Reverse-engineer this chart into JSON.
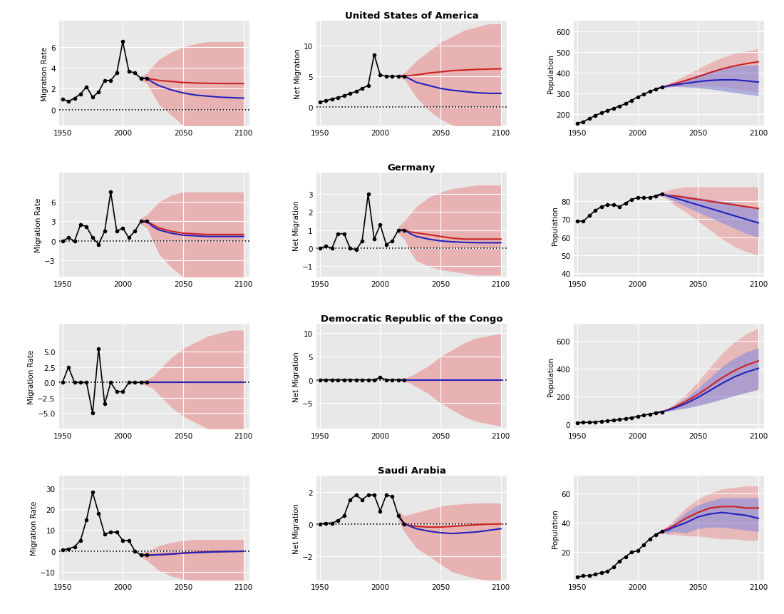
{
  "countries": [
    "United States of America",
    "Germany",
    "Democratic Republic of the Congo",
    "Saudi Arabia"
  ],
  "hist_years": [
    1950,
    1955,
    1960,
    1965,
    1970,
    1975,
    1980,
    1985,
    1990,
    1995,
    2000,
    2005,
    2010,
    2015,
    2020
  ],
  "proj_years": [
    2015,
    2020,
    2025,
    2030,
    2040,
    2050,
    2060,
    2070,
    2080,
    2090,
    2100
  ],
  "background_color": "#e8e8e8",
  "red_color": "#cc2222",
  "blue_color": "#2222bb",
  "red_band_color": "#e8a0a0",
  "blue_band_color": "#9090d8",
  "USA": {
    "mig_rate_hist": [
      1.0,
      0.8,
      1.1,
      1.5,
      2.2,
      1.2,
      1.7,
      2.8,
      2.8,
      3.5,
      6.5,
      3.7,
      3.5,
      3.0,
      3.0
    ],
    "mig_rate_ylim": [
      -1.5,
      8.5
    ],
    "mig_rate_yticks": [
      0,
      2,
      4,
      6
    ],
    "mig_rate_proj_red": [
      3.0,
      3.0,
      2.9,
      2.8,
      2.7,
      2.6,
      2.55,
      2.52,
      2.51,
      2.5,
      2.5
    ],
    "mig_rate_proj_blue": [
      3.0,
      3.0,
      2.6,
      2.3,
      1.9,
      1.6,
      1.4,
      1.3,
      1.2,
      1.15,
      1.1
    ],
    "mig_rate_band_upper": [
      3.2,
      3.5,
      4.2,
      4.8,
      5.5,
      6.0,
      6.3,
      6.5,
      6.5,
      6.5,
      6.5
    ],
    "mig_rate_band_lower": [
      2.8,
      2.5,
      1.5,
      0.5,
      -0.5,
      -1.5,
      -2.2,
      -2.7,
      -3.0,
      -3.0,
      -3.0
    ],
    "net_mig_hist": [
      0.8,
      1.0,
      1.3,
      1.5,
      1.8,
      2.2,
      2.5,
      3.0,
      3.5,
      8.5,
      5.2,
      5.0,
      5.0,
      5.0,
      5.0
    ],
    "net_mig_ylim": [
      -3,
      14
    ],
    "net_mig_yticks": [
      0,
      5,
      10
    ],
    "net_mig_proj_red": [
      5.0,
      5.0,
      5.1,
      5.2,
      5.5,
      5.7,
      5.9,
      6.0,
      6.1,
      6.15,
      6.2
    ],
    "net_mig_proj_blue": [
      5.0,
      5.0,
      4.5,
      4.0,
      3.5,
      3.0,
      2.7,
      2.5,
      2.3,
      2.2,
      2.2
    ],
    "net_mig_band_upper": [
      5.2,
      5.5,
      6.5,
      7.5,
      9.0,
      10.5,
      11.5,
      12.5,
      13.0,
      13.5,
      13.5
    ],
    "net_mig_band_lower": [
      4.8,
      4.5,
      3.0,
      1.5,
      -0.5,
      -2.0,
      -3.0,
      -3.5,
      -4.0,
      -4.0,
      -4.0
    ],
    "pop_hist": [
      155,
      163,
      178,
      193,
      205,
      216,
      228,
      238,
      250,
      266,
      282,
      295,
      309,
      320,
      329
    ],
    "pop_ylim": [
      145,
      650
    ],
    "pop_yticks": [
      200,
      300,
      400,
      500,
      600
    ],
    "pop_proj_red": [
      320,
      329,
      337,
      345,
      362,
      380,
      400,
      418,
      432,
      443,
      452
    ],
    "pop_proj_blue": [
      320,
      329,
      335,
      340,
      348,
      356,
      362,
      365,
      365,
      360,
      354
    ],
    "pop_band_upper": [
      321,
      332,
      345,
      358,
      388,
      418,
      448,
      472,
      492,
      505,
      515
    ],
    "pop_band_lower": [
      319,
      326,
      329,
      332,
      335,
      336,
      335,
      330,
      323,
      315,
      306
    ],
    "pop_blue_band_upper": [
      320,
      330,
      339,
      348,
      368,
      388,
      406,
      420,
      430,
      435,
      438
    ],
    "pop_blue_band_lower": [
      320,
      328,
      331,
      333,
      330,
      326,
      320,
      312,
      303,
      295,
      288
    ]
  },
  "GER": {
    "mig_rate_hist": [
      0.0,
      0.5,
      0.0,
      2.5,
      2.2,
      0.5,
      -0.5,
      1.5,
      7.5,
      1.5,
      2.0,
      0.5,
      1.5,
      3.0,
      3.0
    ],
    "mig_rate_ylim": [
      -5.5,
      10.5
    ],
    "mig_rate_yticks": [
      -3,
      0,
      3,
      6
    ],
    "mig_rate_proj_red": [
      3.0,
      3.0,
      2.5,
      2.0,
      1.5,
      1.2,
      1.1,
      1.0,
      1.0,
      1.0,
      1.0
    ],
    "mig_rate_proj_blue": [
      3.0,
      3.0,
      2.2,
      1.7,
      1.2,
      0.9,
      0.8,
      0.7,
      0.7,
      0.7,
      0.7
    ],
    "mig_rate_band_upper": [
      3.5,
      4.0,
      5.0,
      6.0,
      7.0,
      7.5,
      7.5,
      7.5,
      7.5,
      7.5,
      7.5
    ],
    "mig_rate_band_lower": [
      2.5,
      2.0,
      0.0,
      -2.0,
      -4.0,
      -5.5,
      -6.0,
      -6.5,
      -6.5,
      -6.5,
      -6.5
    ],
    "net_mig_hist": [
      0.0,
      0.1,
      0.0,
      0.8,
      0.8,
      0.0,
      -0.1,
      0.4,
      3.0,
      0.5,
      1.3,
      0.2,
      0.4,
      1.0,
      1.0
    ],
    "net_mig_ylim": [
      -1.6,
      4.2
    ],
    "net_mig_yticks": [
      -1,
      0,
      1,
      2,
      3
    ],
    "net_mig_proj_red": [
      1.0,
      1.0,
      0.9,
      0.85,
      0.75,
      0.65,
      0.55,
      0.5,
      0.5,
      0.5,
      0.5
    ],
    "net_mig_proj_blue": [
      1.0,
      1.0,
      0.8,
      0.65,
      0.5,
      0.4,
      0.35,
      0.32,
      0.3,
      0.3,
      0.3
    ],
    "net_mig_band_upper": [
      1.2,
      1.5,
      1.9,
      2.3,
      2.8,
      3.1,
      3.3,
      3.4,
      3.5,
      3.5,
      3.5
    ],
    "net_mig_band_lower": [
      0.8,
      0.5,
      -0.2,
      -0.7,
      -1.0,
      -1.2,
      -1.3,
      -1.4,
      -1.5,
      -1.5,
      -1.5
    ],
    "pop_hist": [
      69,
      69,
      72,
      75,
      77,
      78,
      78,
      77,
      79,
      81,
      82,
      82,
      82,
      83,
      84
    ],
    "pop_ylim": [
      38,
      96
    ],
    "pop_yticks": [
      40,
      50,
      60,
      70,
      80
    ],
    "pop_proj_red": [
      83,
      84,
      83,
      83,
      82,
      81,
      80,
      79,
      78,
      77,
      76
    ],
    "pop_proj_blue": [
      83,
      84,
      83,
      82,
      80,
      78,
      76,
      74,
      72,
      70,
      68
    ],
    "pop_band_upper": [
      83.5,
      85,
      86,
      87,
      88,
      88,
      88,
      88,
      88,
      88,
      88
    ],
    "pop_band_lower": [
      82.5,
      83,
      81,
      78,
      74,
      69,
      64,
      59,
      55,
      52,
      50
    ],
    "pop_blue_band_upper": [
      83,
      84.5,
      84,
      84,
      83,
      82,
      81,
      80,
      79,
      77,
      76
    ],
    "pop_blue_band_lower": [
      83,
      83.5,
      82,
      80,
      77,
      74,
      71,
      68,
      65,
      62,
      60
    ]
  },
  "DRC": {
    "mig_rate_hist": [
      0.0,
      2.5,
      0.0,
      0.0,
      0.0,
      -5.0,
      5.5,
      -3.5,
      0.0,
      -1.5,
      -1.5,
      0.0,
      0.0,
      0.0,
      0.0
    ],
    "mig_rate_ylim": [
      -7.5,
      9.5
    ],
    "mig_rate_yticks": [
      -5.0,
      -2.5,
      0.0,
      2.5,
      5.0
    ],
    "mig_rate_proj_red": [
      0.0,
      0.0,
      0.0,
      0.0,
      0.0,
      0.0,
      0.0,
      0.0,
      0.0,
      0.0,
      0.0
    ],
    "mig_rate_proj_blue": [
      0.0,
      0.0,
      0.0,
      0.0,
      0.0,
      0.0,
      0.0,
      0.0,
      0.0,
      0.0,
      0.0
    ],
    "mig_rate_band_upper": [
      0.3,
      0.5,
      1.0,
      2.0,
      4.0,
      5.5,
      6.5,
      7.5,
      8.0,
      8.5,
      8.5
    ],
    "mig_rate_band_lower": [
      -0.3,
      -0.5,
      -1.0,
      -2.0,
      -4.0,
      -5.5,
      -6.5,
      -7.5,
      -8.0,
      -8.5,
      -8.5
    ],
    "net_mig_hist": [
      0.0,
      0.0,
      0.0,
      0.0,
      0.0,
      0.0,
      0.0,
      0.0,
      0.0,
      0.0,
      0.5,
      0.0,
      0.0,
      0.0,
      0.0
    ],
    "net_mig_ylim": [
      -10.5,
      12
    ],
    "net_mig_yticks": [
      -5,
      0,
      5,
      10
    ],
    "net_mig_proj_red": [
      0.0,
      0.0,
      0.0,
      0.0,
      0.0,
      0.0,
      0.0,
      0.0,
      0.0,
      0.0,
      0.0
    ],
    "net_mig_proj_blue": [
      0.0,
      0.0,
      0.0,
      0.0,
      0.0,
      0.0,
      0.0,
      0.0,
      0.0,
      0.0,
      0.0
    ],
    "net_mig_band_upper": [
      0.2,
      0.3,
      0.8,
      1.5,
      3.0,
      5.0,
      6.5,
      8.0,
      9.0,
      9.5,
      10.0
    ],
    "net_mig_band_lower": [
      -0.2,
      -0.3,
      -0.8,
      -1.5,
      -3.0,
      -5.0,
      -6.5,
      -8.0,
      -9.0,
      -9.5,
      -10.0
    ],
    "pop_hist": [
      12,
      14,
      15,
      18,
      22,
      26,
      30,
      35,
      42,
      49,
      57,
      66,
      74,
      84,
      90
    ],
    "pop_ylim": [
      -30,
      720
    ],
    "pop_yticks": [
      0,
      200,
      400,
      600
    ],
    "pop_proj_red": [
      84,
      90,
      105,
      122,
      165,
      215,
      275,
      335,
      385,
      425,
      455
    ],
    "pop_proj_blue": [
      84,
      90,
      102,
      116,
      150,
      194,
      244,
      295,
      340,
      375,
      402
    ],
    "pop_band_upper": [
      85,
      93,
      115,
      145,
      215,
      305,
      410,
      510,
      590,
      650,
      690
    ],
    "pop_band_lower": [
      83,
      87,
      96,
      104,
      122,
      142,
      162,
      185,
      208,
      230,
      252
    ],
    "pop_blue_band_upper": [
      84.5,
      91,
      109,
      133,
      188,
      258,
      336,
      415,
      475,
      520,
      550
    ],
    "pop_blue_band_lower": [
      83.5,
      89,
      96,
      102,
      116,
      134,
      156,
      180,
      205,
      228,
      250
    ]
  },
  "SAU": {
    "mig_rate_hist": [
      0.5,
      1.0,
      2.0,
      5.0,
      15.0,
      28.0,
      18.0,
      8.0,
      9.0,
      9.0,
      5.0,
      5.0,
      0.0,
      -2.0,
      -2.0
    ],
    "mig_rate_ylim": [
      -14,
      36
    ],
    "mig_rate_yticks": [
      -10,
      0,
      10,
      20,
      30
    ],
    "mig_rate_proj_red": [
      -2.0,
      -2.0,
      -2.0,
      -1.8,
      -1.5,
      -1.0,
      -0.7,
      -0.5,
      -0.3,
      -0.2,
      -0.1
    ],
    "mig_rate_proj_blue": [
      -2.0,
      -2.0,
      -1.9,
      -1.8,
      -1.5,
      -1.1,
      -0.8,
      -0.6,
      -0.4,
      -0.3,
      -0.2
    ],
    "mig_rate_band_upper": [
      -1.0,
      0.0,
      1.0,
      2.5,
      4.0,
      5.0,
      5.5,
      5.5,
      5.5,
      5.5,
      5.5
    ],
    "mig_rate_band_lower": [
      -3.0,
      -4.5,
      -7.0,
      -9.5,
      -12.0,
      -13.5,
      -14.0,
      -14.0,
      -14.0,
      -14.0,
      -14.0
    ],
    "net_mig_hist": [
      0.0,
      0.05,
      0.05,
      0.2,
      0.5,
      1.5,
      1.8,
      1.5,
      1.8,
      1.8,
      0.8,
      1.8,
      1.7,
      0.5,
      0.0
    ],
    "net_mig_ylim": [
      -3.5,
      3.0
    ],
    "net_mig_yticks": [
      -2,
      0,
      2
    ],
    "net_mig_proj_red": [
      0.5,
      0.0,
      -0.1,
      -0.15,
      -0.2,
      -0.2,
      -0.15,
      -0.1,
      -0.05,
      -0.02,
      0.0
    ],
    "net_mig_proj_blue": [
      0.5,
      0.0,
      -0.15,
      -0.3,
      -0.45,
      -0.55,
      -0.6,
      -0.55,
      -0.5,
      -0.4,
      -0.3
    ],
    "net_mig_band_upper": [
      0.8,
      0.5,
      0.6,
      0.7,
      0.9,
      1.1,
      1.2,
      1.25,
      1.3,
      1.3,
      1.3
    ],
    "net_mig_band_lower": [
      0.2,
      -0.5,
      -1.0,
      -1.5,
      -2.0,
      -2.5,
      -3.0,
      -3.2,
      -3.4,
      -3.5,
      -3.5
    ],
    "pop_hist": [
      3,
      4,
      4,
      5,
      6,
      7,
      10,
      14,
      17,
      20,
      21,
      25,
      29,
      32,
      34
    ],
    "pop_ylim": [
      1,
      72
    ],
    "pop_yticks": [
      20,
      40,
      60
    ],
    "pop_proj_red": [
      32,
      34,
      36,
      38,
      43,
      47,
      50,
      51,
      51,
      50,
      50
    ],
    "pop_proj_blue": [
      32,
      34,
      35,
      37,
      40,
      44,
      46,
      47,
      46,
      45,
      43
    ],
    "pop_band_upper": [
      33,
      35,
      38,
      42,
      50,
      56,
      60,
      63,
      64,
      65,
      65
    ],
    "pop_band_lower": [
      31,
      33,
      32,
      32,
      31,
      31,
      30,
      29,
      29,
      28,
      28
    ],
    "pop_blue_band_upper": [
      32.5,
      34.5,
      37,
      40,
      47,
      52,
      55,
      57,
      57,
      57,
      57
    ],
    "pop_blue_band_lower": [
      31.5,
      33.5,
      33,
      34,
      33,
      36,
      37,
      37,
      36,
      35,
      34
    ]
  }
}
